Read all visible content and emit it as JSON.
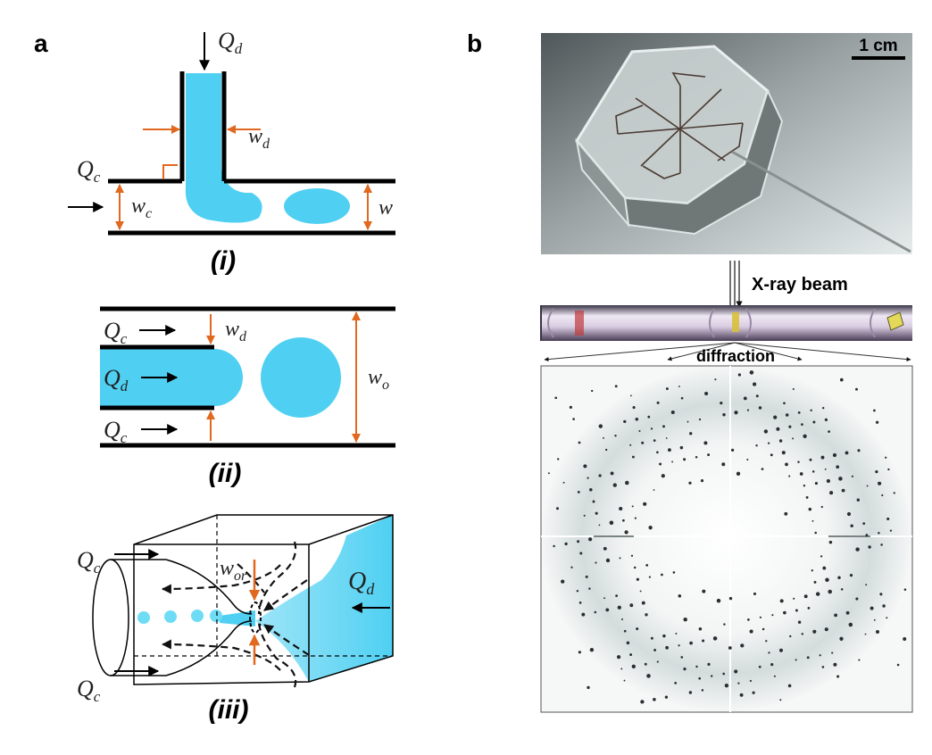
{
  "panel_a": {
    "label": "a",
    "sub_i": {
      "roman": "(i)",
      "q_d": {
        "sym": "Q",
        "sub": "d"
      },
      "w_d": {
        "sym": "w",
        "sub": "d"
      },
      "q_c": {
        "sym": "Q",
        "sub": "c"
      },
      "w_c": {
        "sym": "w",
        "sub": "c"
      },
      "w_right": "w"
    },
    "sub_ii": {
      "roman": "(ii)",
      "q_c_top": {
        "sym": "Q",
        "sub": "c"
      },
      "q_d": {
        "sym": "Q",
        "sub": "d"
      },
      "q_c_bottom": {
        "sym": "Q",
        "sub": "c"
      },
      "w_d": {
        "sym": "w",
        "sub": "d"
      },
      "w_o": {
        "sym": "w",
        "sub": "o"
      }
    },
    "sub_iii": {
      "roman": "(iii)",
      "q_c_top": {
        "sym": "Q",
        "sub": "c"
      },
      "q_c_bottom": {
        "sym": "Q",
        "sub": "c"
      },
      "w_or": {
        "sym": "w",
        "sub": "or"
      },
      "q_d": {
        "sym": "Q",
        "sub": "d"
      }
    }
  },
  "panel_b": {
    "label": "b",
    "scale_bar": "1 cm",
    "beam_label": "X-ray beam",
    "diffraction_label": "diffraction"
  },
  "colors": {
    "fluid": "#4fd0f2",
    "arrow_orange": "#e0681f",
    "wall": "#000000"
  }
}
